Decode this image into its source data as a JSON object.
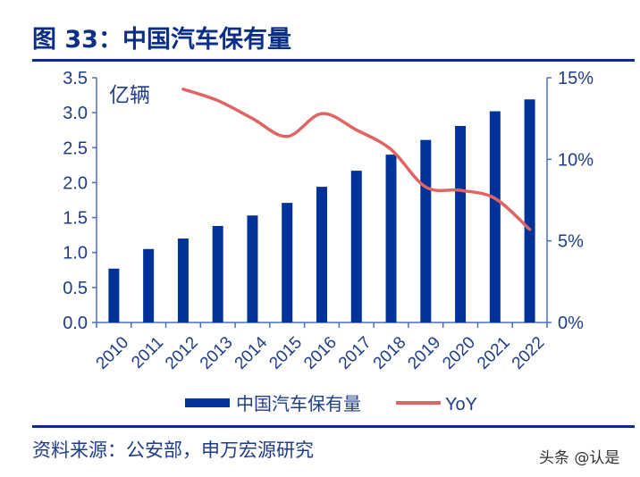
{
  "title": "图 33：中国汽车保有量",
  "source": "资料来源：公安部，申万宏源研究",
  "watermark": "头条 @认是",
  "chart_data": {
    "type": "bar",
    "unit_label": "亿辆",
    "categories": [
      "2010",
      "2011",
      "2012",
      "2013",
      "2014",
      "2015",
      "2016",
      "2017",
      "2018",
      "2019",
      "2020",
      "2021",
      "2022"
    ],
    "series": [
      {
        "name": "中国汽车保有量",
        "type": "bar",
        "axis": "left",
        "color": "#003399",
        "values": [
          0.77,
          1.05,
          1.2,
          1.38,
          1.53,
          1.71,
          1.94,
          2.17,
          2.4,
          2.61,
          2.81,
          3.02,
          3.19
        ]
      },
      {
        "name": "YoY",
        "type": "line",
        "axis": "right",
        "color": "#E06464",
        "values": [
          null,
          null,
          14.3,
          13.6,
          12.5,
          11.4,
          12.8,
          11.8,
          10.6,
          8.3,
          8.1,
          7.6,
          5.7
        ]
      }
    ],
    "y_left": {
      "min": 0,
      "max": 3.5,
      "ticks": [
        "0.0",
        "0.5",
        "1.0",
        "1.5",
        "2.0",
        "2.5",
        "3.0",
        "3.5"
      ]
    },
    "y_right": {
      "min": 0,
      "max": 15,
      "ticks": [
        "0%",
        "5%",
        "10%",
        "15%"
      ]
    },
    "legend_position": "bottom",
    "grid": false
  }
}
